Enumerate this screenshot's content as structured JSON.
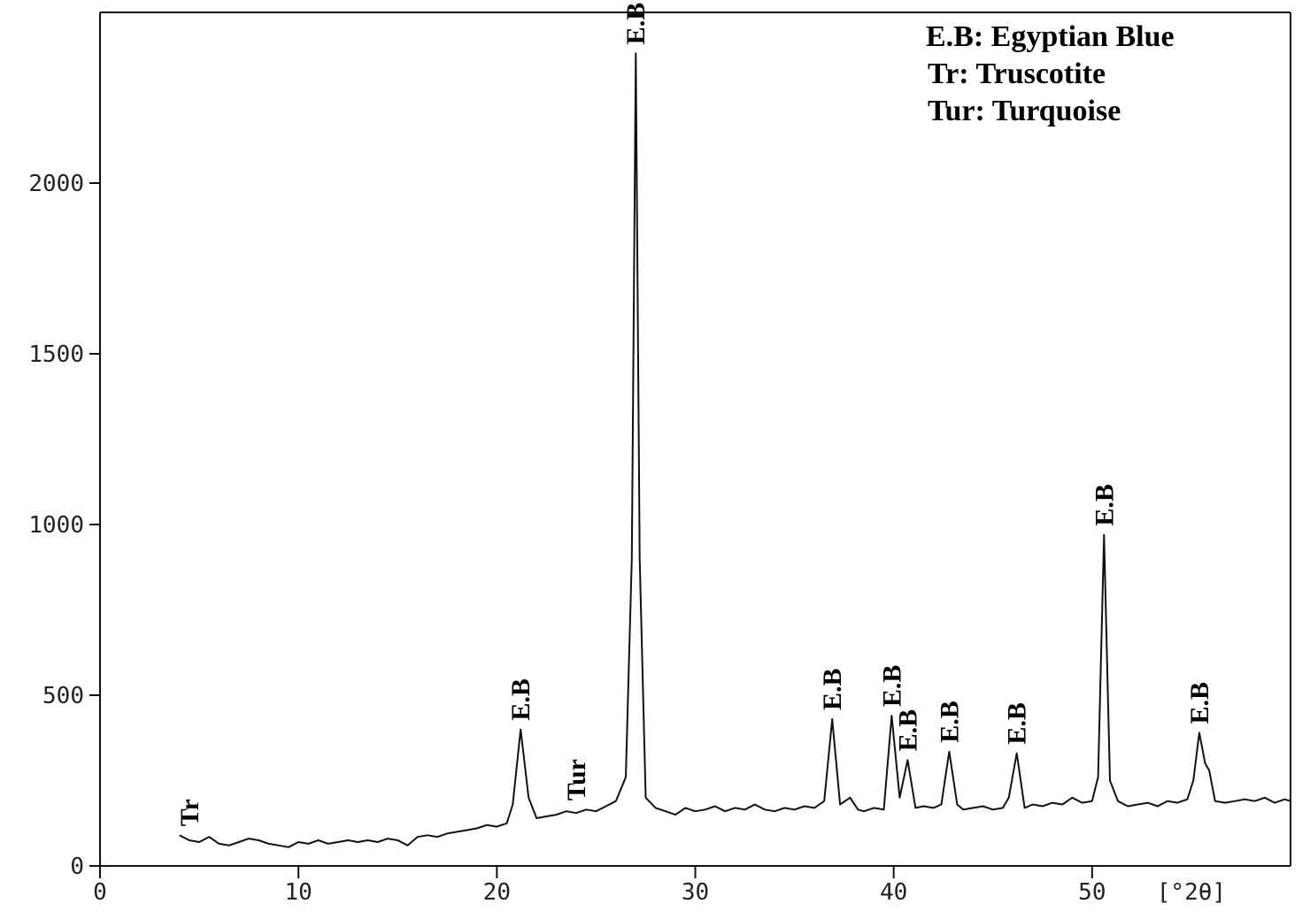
{
  "chart_data": {
    "type": "line",
    "xlabel": "[°2θ]",
    "xlim": [
      0,
      60
    ],
    "ylim": [
      0,
      2500
    ],
    "xticks": [
      0,
      10,
      20,
      30,
      40,
      50
    ],
    "yticks": [
      0,
      500,
      1000,
      1500,
      2000
    ],
    "notes": [
      "E.B: Egyptian Blue",
      "Tr: Truscotite",
      "Tur: Turquoise"
    ],
    "annotations": [
      {
        "text": "Tr",
        "x": 4.5
      },
      {
        "text": "E.B",
        "x": 21.2
      },
      {
        "text": "Tur",
        "x": 24
      },
      {
        "text": "E.B",
        "x": 27
      },
      {
        "text": "E.B",
        "x": 36.9
      },
      {
        "text": "E.B",
        "x": 39.9
      },
      {
        "text": "E.B",
        "x": 40.7
      },
      {
        "text": "E.B",
        "x": 42.8
      },
      {
        "text": "E.B",
        "x": 46.2
      },
      {
        "text": "E.B",
        "x": 50.6
      },
      {
        "text": "E.B",
        "x": 55.4
      }
    ],
    "series": [
      {
        "color": "#111111",
        "x": [
          4,
          4.5,
          5,
          5.5,
          6,
          6.5,
          7,
          7.5,
          8,
          8.5,
          9,
          9.5,
          10,
          10.5,
          11,
          11.5,
          12,
          12.5,
          13,
          13.5,
          14,
          14.5,
          15,
          15.5,
          16,
          16.5,
          17,
          17.5,
          18,
          18.5,
          19,
          19.5,
          20,
          20.5,
          20.8,
          21.2,
          21.6,
          22,
          22.5,
          23,
          23.5,
          24,
          24.5,
          25,
          25.5,
          26,
          26.5,
          26.8,
          27,
          27.2,
          27.5,
          28,
          28.5,
          29,
          29.5,
          30,
          30.5,
          31,
          31.5,
          32,
          32.5,
          33,
          33.5,
          34,
          34.5,
          35,
          35.5,
          36,
          36.5,
          36.9,
          37.3,
          37.8,
          38.2,
          38.5,
          39,
          39.5,
          39.9,
          40.3,
          40.7,
          41.1,
          41.5,
          42,
          42.4,
          42.8,
          43.2,
          43.5,
          44,
          44.5,
          45,
          45.5,
          45.8,
          46.2,
          46.6,
          47,
          47.5,
          48,
          48.5,
          49,
          49.5,
          50,
          50.3,
          50.6,
          50.9,
          51.3,
          51.8,
          52.3,
          52.8,
          53.3,
          53.8,
          54.3,
          54.8,
          55.1,
          55.4,
          55.7,
          55.9,
          56.2,
          56.7,
          57.2,
          57.7,
          58.2,
          58.7,
          59.2,
          59.7,
          60
        ],
        "values": [
          90,
          75,
          70,
          85,
          65,
          60,
          70,
          80,
          75,
          65,
          60,
          55,
          70,
          65,
          75,
          65,
          70,
          75,
          70,
          75,
          70,
          80,
          75,
          60,
          85,
          90,
          85,
          95,
          100,
          105,
          110,
          120,
          115,
          125,
          180,
          400,
          200,
          140,
          145,
          150,
          160,
          155,
          165,
          160,
          175,
          190,
          260,
          900,
          2380,
          900,
          200,
          170,
          160,
          150,
          170,
          160,
          165,
          175,
          160,
          170,
          165,
          180,
          165,
          160,
          170,
          165,
          175,
          170,
          190,
          430,
          180,
          200,
          165,
          160,
          170,
          165,
          440,
          200,
          310,
          170,
          175,
          170,
          180,
          335,
          180,
          165,
          170,
          175,
          165,
          170,
          200,
          330,
          170,
          180,
          175,
          185,
          180,
          200,
          185,
          190,
          260,
          970,
          250,
          190,
          175,
          180,
          185,
          175,
          190,
          185,
          195,
          250,
          390,
          300,
          280,
          190,
          185,
          190,
          195,
          190,
          200,
          185,
          195,
          190
        ]
      }
    ]
  }
}
